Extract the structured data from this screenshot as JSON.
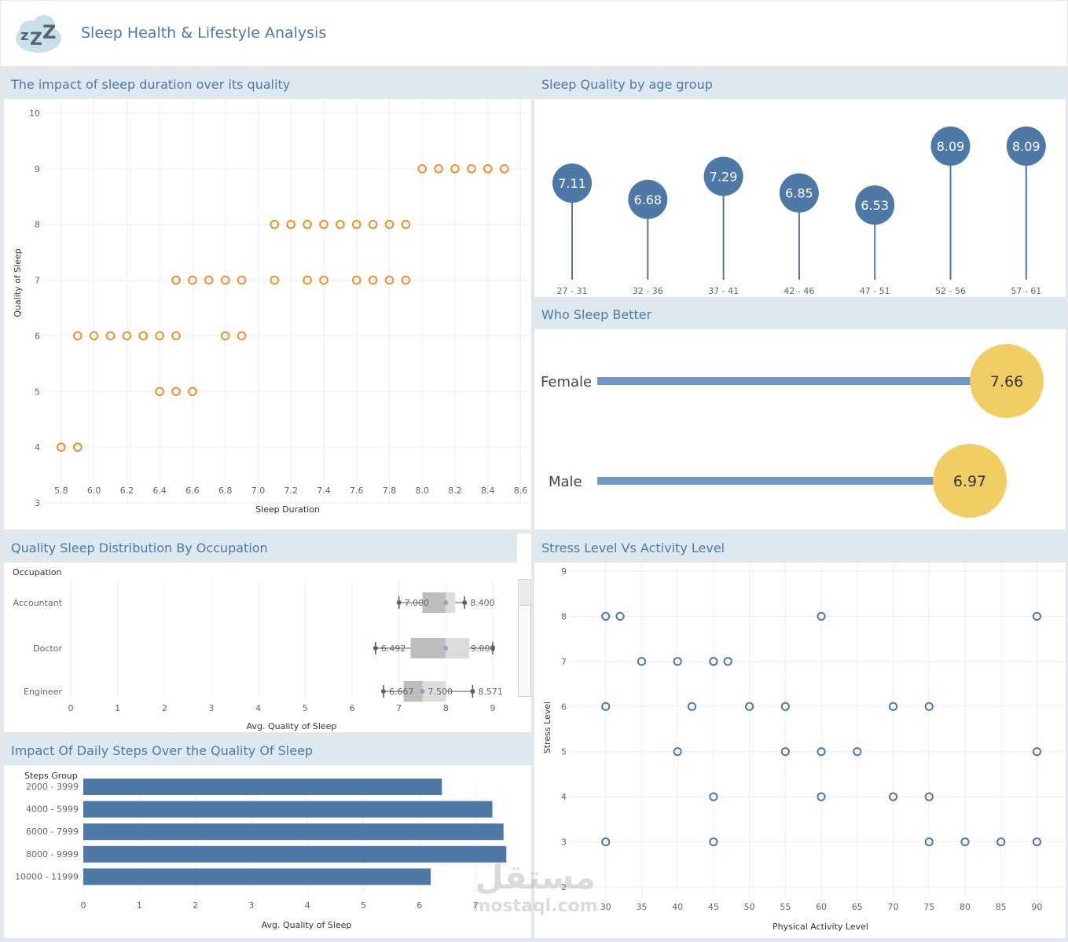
{
  "header": {
    "title": "Sleep Health & Lifestyle Analysis",
    "logo_icon": "sleeping-cloud-zzz-icon"
  },
  "watermark": {
    "arabic": "مستقل",
    "latin": "mostaql.com"
  },
  "panels": {
    "duration_quality": "The impact of sleep duration over its quality",
    "age_group": "Sleep Quality by age group",
    "gender": "Who Sleep Better",
    "occupation": "Quality Sleep Distribution By Occupation",
    "steps": "Impact Of Daily Steps Over the Quality Of Sleep",
    "stress_activity": "Stress Level Vs Activity Level"
  },
  "colors": {
    "orange": "#f28e2b",
    "blue": "#4e79a7",
    "bar_light": "#7199c4",
    "yellow": "#f1ce63",
    "title_bg": "#dde8ef"
  },
  "chart_data": [
    {
      "id": "duration_quality",
      "type": "scatter",
      "xlabel": "Sleep Duration",
      "ylabel": "Quality of Sleep",
      "xlim": [
        5.7,
        8.65
      ],
      "ylim": [
        3,
        10
      ],
      "xticks": [
        "5.8",
        "6.0",
        "6.2",
        "6.4",
        "6.6",
        "6.8",
        "7.0",
        "7.2",
        "7.4",
        "7.6",
        "7.8",
        "8.0",
        "8.2",
        "8.4",
        "8.6"
      ],
      "yticks": [
        "3",
        "4",
        "5",
        "6",
        "7",
        "8",
        "9",
        "10"
      ],
      "points": [
        [
          5.8,
          4
        ],
        [
          5.9,
          4
        ],
        [
          6.4,
          5
        ],
        [
          6.5,
          5
        ],
        [
          6.6,
          5
        ],
        [
          5.9,
          6
        ],
        [
          6.0,
          6
        ],
        [
          6.1,
          6
        ],
        [
          6.2,
          6
        ],
        [
          6.3,
          6
        ],
        [
          6.4,
          6
        ],
        [
          6.5,
          6
        ],
        [
          6.8,
          6
        ],
        [
          6.9,
          6
        ],
        [
          6.5,
          7
        ],
        [
          6.6,
          7
        ],
        [
          6.7,
          7
        ],
        [
          6.8,
          7
        ],
        [
          6.9,
          7
        ],
        [
          7.1,
          7
        ],
        [
          7.3,
          7
        ],
        [
          7.4,
          7
        ],
        [
          7.6,
          7
        ],
        [
          7.7,
          7
        ],
        [
          7.8,
          7
        ],
        [
          7.9,
          7
        ],
        [
          7.1,
          8
        ],
        [
          7.2,
          8
        ],
        [
          7.3,
          8
        ],
        [
          7.4,
          8
        ],
        [
          7.5,
          8
        ],
        [
          7.6,
          8
        ],
        [
          7.7,
          8
        ],
        [
          7.8,
          8
        ],
        [
          7.9,
          8
        ],
        [
          8.0,
          9
        ],
        [
          8.1,
          9
        ],
        [
          8.2,
          9
        ],
        [
          8.3,
          9
        ],
        [
          8.4,
          9
        ],
        [
          8.5,
          9
        ]
      ]
    },
    {
      "id": "age_group",
      "type": "lollipop",
      "categories": [
        "27 - 31",
        "32 - 36",
        "37 - 41",
        "42 - 46",
        "47 - 51",
        "52 - 56",
        "57 - 61"
      ],
      "values": [
        7.11,
        6.68,
        7.29,
        6.85,
        6.53,
        8.09,
        8.09
      ],
      "labels": [
        "7.11",
        "6.68",
        "7.29",
        "6.85",
        "6.53",
        "8.09",
        "8.09"
      ]
    },
    {
      "id": "gender",
      "type": "lollipop-horizontal",
      "categories": [
        "Female",
        "Male"
      ],
      "values": [
        7.66,
        6.97
      ],
      "labels": [
        "7.66",
        "6.97"
      ]
    },
    {
      "id": "occupation",
      "type": "boxplot",
      "header": "Occupation",
      "xlabel": "Avg. Quality of Sleep",
      "xlim": [
        0,
        9.3
      ],
      "xticks": [
        "0",
        "1",
        "2",
        "3",
        "4",
        "5",
        "6",
        "7",
        "8",
        "9"
      ],
      "categories": [
        "Accountant",
        "Doctor",
        "Engineer"
      ],
      "boxes": [
        {
          "min": 7.0,
          "q1": 7.5,
          "median": 8.0,
          "q3": 8.2,
          "max": 8.4,
          "mean": 8.0,
          "min_label": "7.000",
          "max_label": "8.400"
        },
        {
          "min": 6.5,
          "q1": 7.25,
          "median": 8.0,
          "q3": 8.5,
          "max": 9.0,
          "mean": 8.0,
          "min_label": "6.492",
          "max_label": "9.000"
        },
        {
          "min": 6.67,
          "q1": 7.1,
          "median": 7.5,
          "q3": 8.0,
          "max": 8.571,
          "mean": 7.5,
          "min_label": "6.667",
          "mid_label": "7.500",
          "max_label": "8.571"
        }
      ]
    },
    {
      "id": "steps",
      "type": "bar",
      "header": "Steps Group",
      "xlabel": "Avg. Quality of Sleep",
      "xlim": [
        0,
        7.7
      ],
      "xticks": [
        "0",
        "1",
        "2",
        "3",
        "4",
        "5",
        "6",
        "7"
      ],
      "categories": [
        "2000 - 3999",
        "4000 - 5999",
        "6000 - 7999",
        "8000 - 9999",
        "10000 - 11999"
      ],
      "values": [
        6.4,
        7.3,
        7.5,
        7.55,
        6.2
      ]
    },
    {
      "id": "stress_activity",
      "type": "scatter",
      "xlabel": "Physical Activity Level",
      "ylabel": "Stress Level",
      "xlim": [
        25,
        94
      ],
      "ylim": [
        2,
        9
      ],
      "xticks": [
        "30",
        "35",
        "40",
        "45",
        "50",
        "55",
        "60",
        "65",
        "70",
        "75",
        "80",
        "85",
        "90"
      ],
      "yticks": [
        "2",
        "3",
        "4",
        "5",
        "6",
        "7",
        "8",
        "9"
      ],
      "points": [
        [
          30,
          8
        ],
        [
          32,
          8
        ],
        [
          60,
          8
        ],
        [
          90,
          8
        ],
        [
          35,
          7
        ],
        [
          40,
          7
        ],
        [
          45,
          7
        ],
        [
          47,
          7
        ],
        [
          30,
          6
        ],
        [
          42,
          6
        ],
        [
          50,
          6
        ],
        [
          55,
          6
        ],
        [
          70,
          6
        ],
        [
          75,
          6
        ],
        [
          40,
          5
        ],
        [
          55,
          5
        ],
        [
          60,
          5
        ],
        [
          65,
          5
        ],
        [
          90,
          5
        ],
        [
          45,
          4
        ],
        [
          60,
          4
        ],
        [
          70,
          4
        ],
        [
          75,
          4
        ],
        [
          30,
          3
        ],
        [
          45,
          3
        ],
        [
          75,
          3
        ],
        [
          80,
          3
        ],
        [
          85,
          3
        ],
        [
          90,
          3
        ]
      ]
    }
  ]
}
